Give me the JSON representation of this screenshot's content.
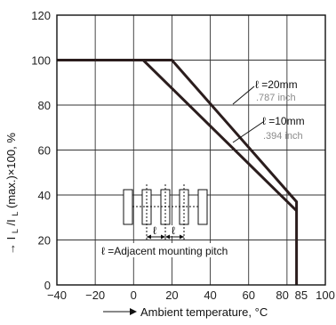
{
  "chart_data": {
    "type": "line",
    "title": "",
    "xlabel": "Ambient temperature, °C",
    "ylabel_main": "I",
    "ylabel_sub1": "L",
    "ylabel_mid": "/I",
    "ylabel_sub2": "L",
    "ylabel_tail": "(max.)×100, %",
    "xlim": [
      -40,
      100
    ],
    "ylim": [
      0,
      120
    ],
    "grid": true,
    "x_ticks": [
      {
        "value": -40,
        "label": "−40"
      },
      {
        "value": -20,
        "label": "−20"
      },
      {
        "value": 0,
        "label": "0"
      },
      {
        "value": 20,
        "label": "20"
      },
      {
        "value": 40,
        "label": "40"
      },
      {
        "value": 60,
        "label": "60"
      },
      {
        "value": 80,
        "label": "80"
      },
      {
        "value": 85,
        "label": "85"
      },
      {
        "value": 100,
        "label": "100"
      }
    ],
    "y_ticks": [
      {
        "value": 0,
        "label": "0"
      },
      {
        "value": 20,
        "label": "20"
      },
      {
        "value": 40,
        "label": "40"
      },
      {
        "value": 60,
        "label": "60"
      },
      {
        "value": 80,
        "label": "80"
      },
      {
        "value": 100,
        "label": "100"
      },
      {
        "value": 120,
        "label": "120"
      }
    ],
    "series": [
      {
        "x": [
          -40,
          20,
          85,
          85
        ],
        "y": [
          100,
          100,
          37,
          0
        ]
      },
      {
        "x": [
          -40,
          5,
          85
        ],
        "y": [
          100,
          100,
          33
        ]
      }
    ],
    "annotations": {
      "curve1_label": "ℓ =20mm",
      "curve1_inch": ".787 inch",
      "curve2_label": "ℓ =10mm",
      "curve2_inch": ".394 inch",
      "pitch_l1": "ℓ",
      "pitch_l2": "ℓ",
      "pitch_caption": "ℓ =Adjacent mounting pitch"
    },
    "colors": {
      "curve": "#2b1d1d",
      "grid": "#333333",
      "inch_text": "#8a8a8a"
    }
  }
}
